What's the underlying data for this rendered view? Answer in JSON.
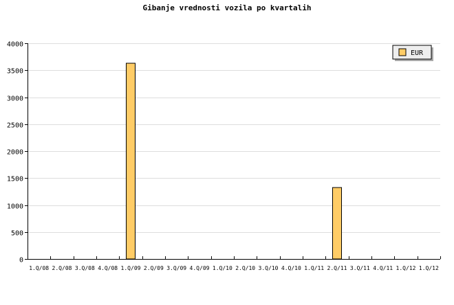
{
  "chart_data": {
    "type": "bar",
    "title": "Gibanje vrednosti vozila po kvartalih",
    "categories": [
      "1.Q/08",
      "2.Q/08",
      "3.Q/08",
      "4.Q/08",
      "1.Q/09",
      "2.Q/09",
      "3.Q/09",
      "4.Q/09",
      "1.Q/10",
      "2.Q/10",
      "3.Q/10",
      "4.Q/10",
      "1.Q/11",
      "2.Q/11",
      "3.Q/11",
      "4.Q/11",
      "1.Q/12",
      "1.Q/12"
    ],
    "series": [
      {
        "name": "EUR",
        "values": [
          0,
          0,
          0,
          0,
          3630,
          0,
          0,
          0,
          0,
          0,
          0,
          0,
          0,
          1325,
          0,
          0,
          0,
          0
        ],
        "color": "#ffcc66"
      }
    ],
    "xlabel": "",
    "ylabel": "",
    "ylim": [
      0,
      4000
    ],
    "yticks": [
      0,
      500,
      1000,
      1500,
      2000,
      2500,
      3000,
      3500,
      4000
    ],
    "grid": true,
    "legend_position": "top-right"
  }
}
